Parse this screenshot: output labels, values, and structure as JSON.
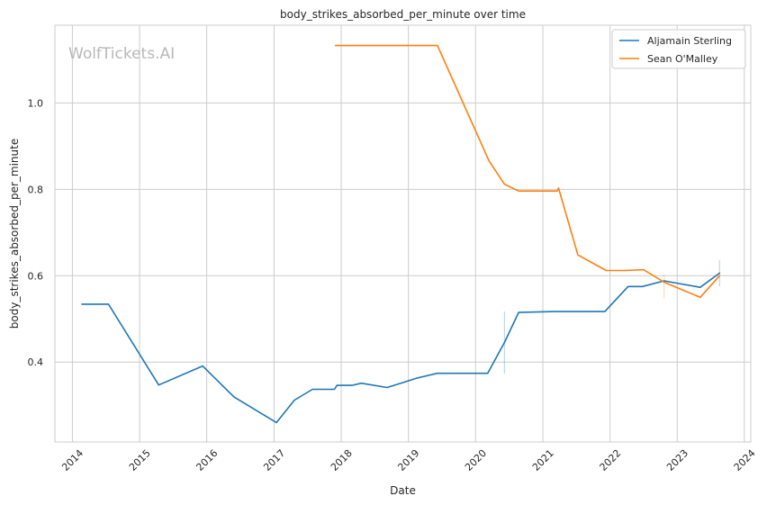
{
  "chart_data": {
    "type": "line",
    "title": "body_strikes_absorbed_per_minute over time",
    "xlabel": "Date",
    "ylabel": "body_strikes_absorbed_per_minute",
    "watermark": "WolfTickets.AI",
    "x_ticks": [
      "2014",
      "2015",
      "2016",
      "2017",
      "2018",
      "2019",
      "2020",
      "2021",
      "2022",
      "2023",
      "2024"
    ],
    "y_ticks": [
      "0.4",
      "0.6",
      "0.8",
      "1.0"
    ],
    "xlim": [
      "2013-09-28",
      "2024-02-05"
    ],
    "ylim": [
      0.215,
      1.18
    ],
    "grid": true,
    "legend_position": "top-right",
    "colors": {
      "Aljamain Sterling": "#1f77b4",
      "Sean O'Malley": "#ff7f0e",
      "grid": "#cccccc",
      "axis": "#cccccc"
    },
    "series": [
      {
        "name": "Aljamain Sterling",
        "color": "#1f77b4",
        "points": [
          [
            "2014-02-22",
            0.534
          ],
          [
            "2014-07-16",
            0.534
          ],
          [
            "2015-04-15",
            0.347
          ],
          [
            "2015-12-10",
            0.391
          ],
          [
            "2016-05-29",
            0.319
          ],
          [
            "2017-01-14",
            0.26
          ],
          [
            "2017-04-22",
            0.312
          ],
          [
            "2017-07-29",
            0.337
          ],
          [
            "2017-11-25",
            0.337
          ],
          [
            "2017-12-09",
            0.346
          ],
          [
            "2018-03-01",
            0.346
          ],
          [
            "2018-04-20",
            0.351
          ],
          [
            "2018-09-08",
            0.341
          ],
          [
            "2019-02-17",
            0.363
          ],
          [
            "2019-06-08",
            0.374
          ],
          [
            "2020-03-07",
            0.374
          ],
          [
            "2020-06-06",
            0.445
          ],
          [
            "2020-08-22",
            0.515
          ],
          [
            "2021-03-06",
            0.517
          ],
          [
            "2021-12-04",
            0.517
          ],
          [
            "2022-04-09",
            0.575
          ],
          [
            "2022-06-26",
            0.575
          ],
          [
            "2022-10-22",
            0.588
          ],
          [
            "2023-05-06",
            0.573
          ],
          [
            "2023-08-19",
            0.606
          ]
        ],
        "error_bars": [
          {
            "x": "2020-06-06",
            "low": 0.373,
            "high": 0.517
          },
          {
            "x": "2023-08-19",
            "low": 0.575,
            "high": 0.636
          }
        ]
      },
      {
        "name": "Sean O'Malley",
        "color": "#ff7f0e",
        "points": [
          [
            "2017-12-01",
            1.133
          ],
          [
            "2019-06-08",
            1.133
          ],
          [
            "2020-03-14",
            0.866
          ],
          [
            "2020-06-06",
            0.812
          ],
          [
            "2020-08-22",
            0.796
          ],
          [
            "2021-03-20",
            0.796
          ],
          [
            "2021-03-27",
            0.803
          ],
          [
            "2021-07-10",
            0.648
          ],
          [
            "2021-12-11",
            0.612
          ],
          [
            "2022-03-24",
            0.612
          ],
          [
            "2022-07-02",
            0.614
          ],
          [
            "2022-10-22",
            0.585
          ],
          [
            "2023-05-06",
            0.55
          ],
          [
            "2023-08-19",
            0.6
          ]
        ],
        "error_bars": [
          {
            "x": "2022-10-22",
            "low": 0.548,
            "high": 0.603
          }
        ]
      }
    ]
  }
}
